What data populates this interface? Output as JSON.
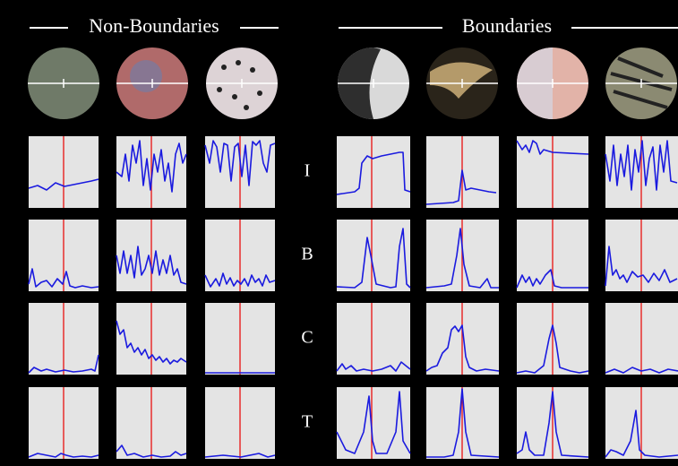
{
  "header": {
    "non_boundaries": "Non-Boundaries",
    "boundaries": "Boundaries"
  },
  "rows": [
    "I",
    "B",
    "C",
    "T"
  ]
}
